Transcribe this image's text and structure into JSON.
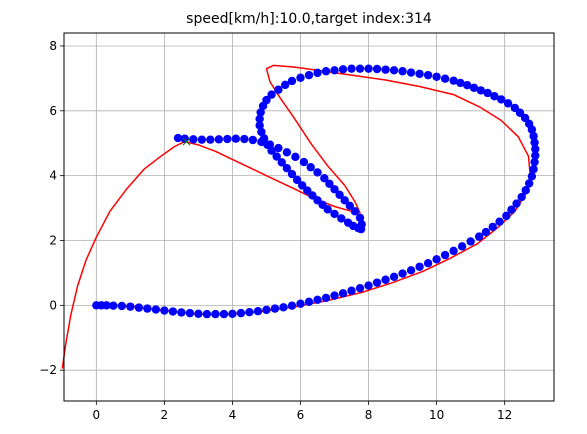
{
  "chart_data": {
    "type": "scatter",
    "title": "speed[km/h]:10.0,target index:314",
    "xlabel": "",
    "ylabel": "",
    "xlim": [
      -0.95,
      13.45
    ],
    "ylim": [
      -2.95,
      8.4
    ],
    "x_ticks": [
      0,
      2,
      4,
      6,
      8,
      10,
      12
    ],
    "y_ticks": [
      -2,
      0,
      2,
      4,
      6,
      8
    ],
    "x_tick_labels": [
      "0",
      "2",
      "4",
      "6",
      "8",
      "10",
      "12"
    ],
    "y_tick_labels": [
      "−2",
      "0",
      "2",
      "4",
      "6",
      "8"
    ],
    "grid": true,
    "colors": {
      "trajectory": "#ff0000",
      "course_points": "#0000ff",
      "target": "#008000"
    },
    "series": [
      {
        "kind": "line",
        "x": [
          -1.0,
          -0.9,
          -0.75,
          -0.55,
          -0.3,
          0.0,
          0.4,
          0.9,
          1.4,
          1.9,
          2.3,
          2.6,
          3.0,
          3.5,
          4.0,
          4.6,
          5.2,
          5.8,
          6.4,
          7.0,
          7.5,
          7.75,
          7.6,
          7.3,
          6.8,
          6.3,
          5.8,
          5.4,
          5.1,
          5.0,
          5.2,
          5.8,
          6.5,
          7.5,
          8.5,
          9.5,
          10.5,
          11.3,
          11.9,
          12.4,
          12.7,
          12.75,
          12.6,
          12.3,
          11.8,
          11.2,
          10.4,
          9.6,
          8.7,
          7.8,
          6.8,
          5.8,
          4.8,
          3.9,
          3.1,
          2.3,
          1.6,
          1.0,
          0.5,
          0.2
        ],
        "y": [
          -1.95,
          -1.2,
          -0.3,
          0.6,
          1.4,
          2.1,
          2.9,
          3.6,
          4.2,
          4.6,
          4.9,
          5.05,
          4.95,
          4.75,
          4.5,
          4.2,
          3.9,
          3.6,
          3.3,
          3.05,
          2.9,
          2.85,
          3.2,
          3.7,
          4.3,
          5.0,
          5.8,
          6.4,
          6.9,
          7.3,
          7.4,
          7.35,
          7.25,
          7.1,
          6.95,
          6.75,
          6.5,
          6.1,
          5.7,
          5.2,
          4.6,
          4.0,
          3.4,
          2.9,
          2.4,
          1.9,
          1.45,
          1.05,
          0.7,
          0.4,
          0.15,
          -0.05,
          -0.2,
          -0.27,
          -0.27,
          -0.2,
          -0.1,
          -0.02,
          0.0,
          0.0
        ]
      },
      {
        "kind": "points",
        "x": [
          0.0,
          0.15,
          0.3,
          0.5,
          0.75,
          1.0,
          1.25,
          1.5,
          1.75,
          2.0,
          2.25,
          2.5,
          2.75,
          3.0,
          3.25,
          3.5,
          3.75,
          4.0,
          4.25,
          4.5,
          4.75,
          5.0,
          5.25,
          5.5,
          5.75,
          6.0,
          6.25,
          6.5,
          6.75,
          7.0,
          7.25,
          7.5,
          7.75,
          8.0,
          8.25,
          8.5,
          8.75,
          9.0,
          9.25,
          9.5,
          9.75,
          10.0,
          10.25,
          10.5,
          10.75,
          11.0,
          11.25,
          11.45,
          11.65,
          11.85,
          12.05,
          12.2,
          12.35,
          12.5,
          12.62,
          12.72,
          12.8,
          12.85,
          12.88,
          12.9,
          12.9,
          12.88,
          12.85,
          12.8,
          12.72,
          12.6,
          12.45,
          12.3,
          12.1,
          11.9,
          11.7,
          11.5,
          11.3,
          11.1,
          10.9,
          10.7,
          10.5,
          10.25,
          10.0,
          9.75,
          9.5,
          9.25,
          9.0,
          8.75,
          8.5,
          8.25,
          8.0,
          7.75,
          7.5,
          7.25,
          7.0,
          6.75,
          6.5,
          6.25,
          6.0,
          5.75,
          5.55,
          5.35,
          5.15,
          5.0,
          4.9,
          4.83,
          4.8,
          4.8,
          4.85,
          4.93,
          5.03,
          5.15,
          5.3,
          5.45,
          5.6,
          5.75,
          5.9,
          6.05,
          6.2,
          6.35,
          6.5,
          6.65,
          6.8,
          7.0,
          7.2,
          7.4,
          7.55,
          7.7,
          7.78,
          7.8,
          7.75,
          7.6,
          7.45,
          7.3,
          7.15,
          7.0,
          6.85,
          6.7,
          6.5,
          6.3,
          6.1,
          5.85,
          5.6,
          5.35,
          5.1,
          4.85,
          4.6,
          4.35,
          4.1,
          3.85,
          3.6,
          3.35,
          3.1,
          2.85,
          2.6,
          2.4
        ],
        "y": [
          0.0,
          0.0,
          0.0,
          -0.01,
          -0.02,
          -0.04,
          -0.07,
          -0.1,
          -0.13,
          -0.16,
          -0.19,
          -0.22,
          -0.24,
          -0.26,
          -0.27,
          -0.27,
          -0.27,
          -0.26,
          -0.24,
          -0.21,
          -0.18,
          -0.14,
          -0.1,
          -0.06,
          -0.01,
          0.05,
          0.11,
          0.17,
          0.23,
          0.3,
          0.37,
          0.45,
          0.53,
          0.61,
          0.7,
          0.79,
          0.88,
          0.98,
          1.08,
          1.19,
          1.3,
          1.42,
          1.55,
          1.68,
          1.82,
          1.97,
          2.12,
          2.26,
          2.42,
          2.58,
          2.76,
          2.95,
          3.14,
          3.34,
          3.55,
          3.76,
          3.98,
          4.2,
          4.42,
          4.62,
          4.82,
          5.02,
          5.22,
          5.42,
          5.6,
          5.78,
          5.94,
          6.09,
          6.23,
          6.35,
          6.45,
          6.55,
          6.63,
          6.71,
          6.79,
          6.86,
          6.93,
          6.99,
          7.05,
          7.1,
          7.14,
          7.18,
          7.22,
          7.25,
          7.27,
          7.29,
          7.3,
          7.3,
          7.3,
          7.28,
          7.25,
          7.22,
          7.17,
          7.1,
          7.02,
          6.92,
          6.8,
          6.65,
          6.5,
          6.33,
          6.15,
          5.95,
          5.75,
          5.55,
          5.35,
          5.15,
          4.95,
          4.77,
          4.59,
          4.41,
          4.23,
          4.05,
          3.87,
          3.7,
          3.54,
          3.39,
          3.24,
          3.1,
          2.96,
          2.82,
          2.68,
          2.55,
          2.45,
          2.38,
          2.35,
          2.5,
          2.7,
          2.9,
          3.07,
          3.24,
          3.41,
          3.58,
          3.75,
          3.92,
          4.1,
          4.26,
          4.42,
          4.58,
          4.72,
          4.85,
          4.96,
          5.04,
          5.1,
          5.13,
          5.14,
          5.13,
          5.12,
          5.11,
          5.11,
          5.12,
          5.14,
          5.16
        ]
      },
      {
        "kind": "marker",
        "x": [
          2.65
        ],
        "y": [
          5.05
        ]
      }
    ]
  }
}
